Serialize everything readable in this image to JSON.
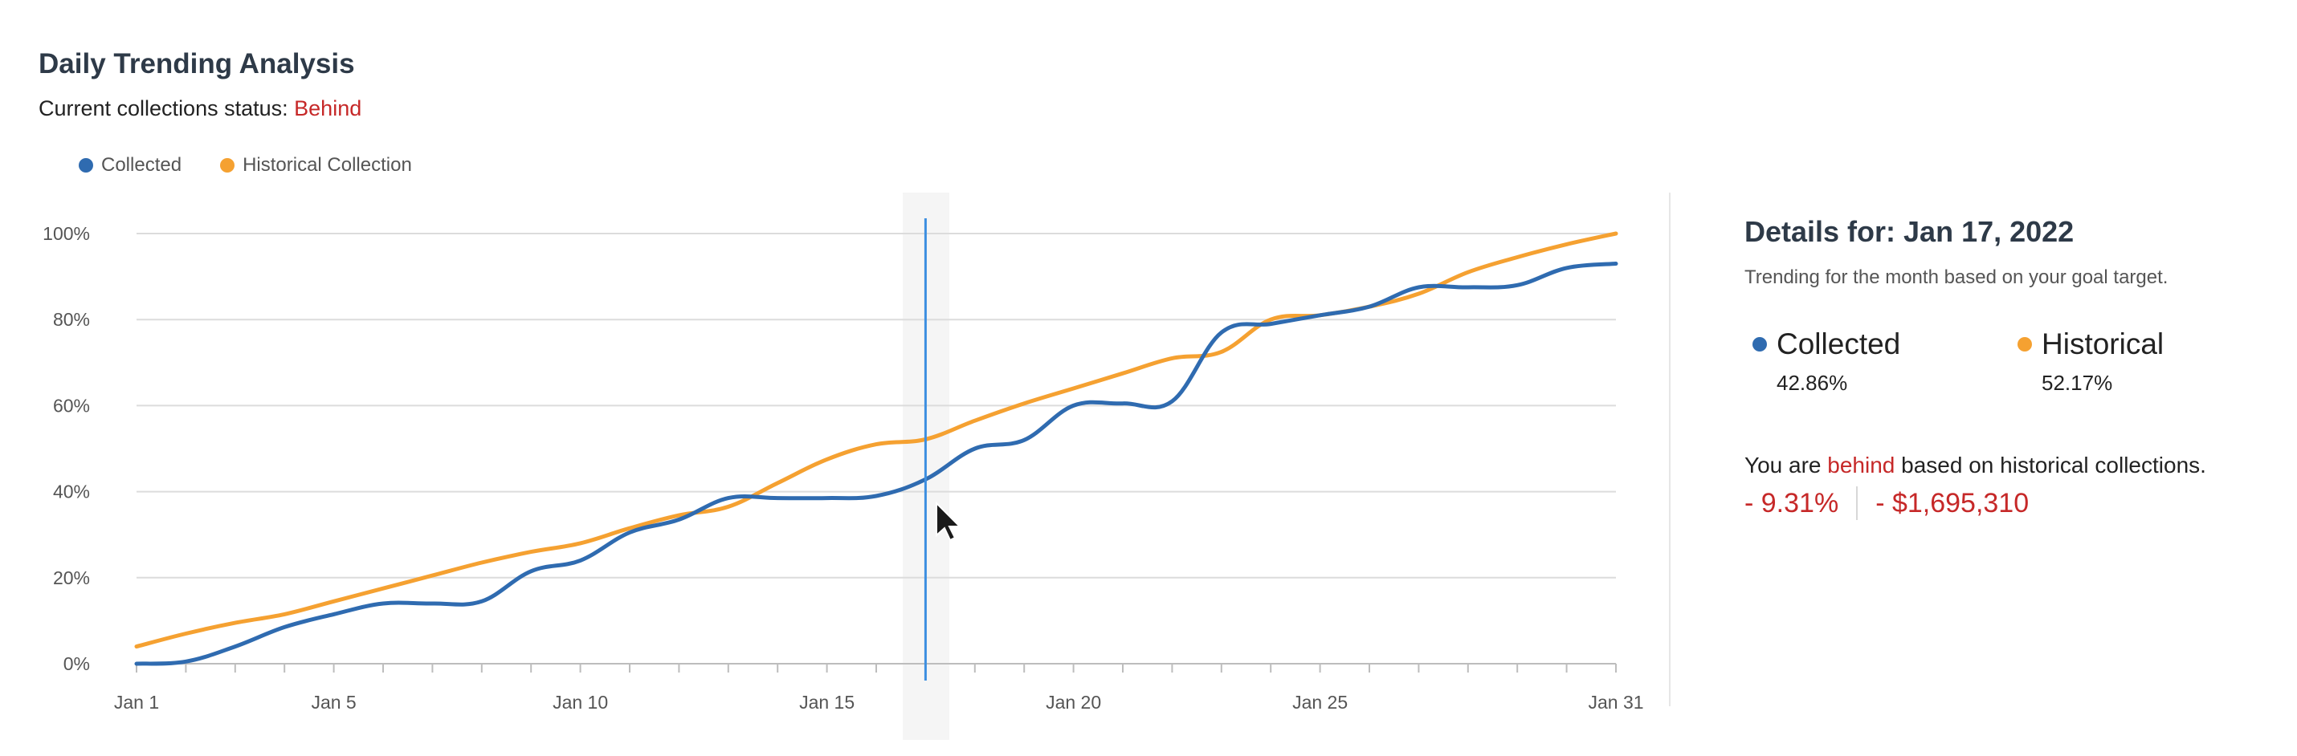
{
  "header": {
    "title": "Daily Trending Analysis",
    "status_label": "Current collections status:",
    "status_value": "Behind"
  },
  "colors": {
    "collected": "#2f6bb0",
    "historical": "#f5a131",
    "behind": "#c62828",
    "hover_line": "#3d8fe0"
  },
  "chart_data": {
    "type": "line",
    "x": [
      1,
      2,
      3,
      4,
      5,
      6,
      7,
      8,
      9,
      10,
      11,
      12,
      13,
      14,
      15,
      16,
      17,
      18,
      19,
      20,
      21,
      22,
      23,
      24,
      25,
      26,
      27,
      28,
      29,
      30,
      31
    ],
    "x_tick_labels": [
      "Jan 1",
      "Jan 5",
      "Jan 10",
      "Jan 15",
      "Jan 20",
      "Jan 25",
      "Jan 31"
    ],
    "x_tick_values": [
      1,
      5,
      10,
      15,
      20,
      25,
      31
    ],
    "y_tick_labels": [
      "0%",
      "20%",
      "40%",
      "60%",
      "80%",
      "100%"
    ],
    "ylim": [
      0,
      100
    ],
    "grid": true,
    "legend": "top-left",
    "series": [
      {
        "name": "Collected",
        "color": "#2f6bb0",
        "values": [
          0,
          0.5,
          4,
          8.5,
          11.5,
          14,
          14,
          14.5,
          21.5,
          24,
          30.5,
          33.5,
          38.5,
          38.5,
          38.5,
          39,
          42.86,
          50,
          52,
          60,
          60.5,
          61,
          77,
          79,
          81,
          83,
          87.5,
          87.5,
          88,
          92,
          93
        ]
      },
      {
        "name": "Historical Collection",
        "color": "#f5a131",
        "values": [
          4,
          7,
          9.5,
          11.5,
          14.5,
          17.5,
          20.5,
          23.5,
          26,
          28,
          31.5,
          34.5,
          36.5,
          42,
          47.5,
          51,
          52.17,
          56.5,
          60.5,
          64,
          67.5,
          71,
          72.5,
          80,
          81,
          83,
          86,
          91,
          94.5,
          97.5,
          100
        ]
      }
    ],
    "hover_x": 17
  },
  "legend": {
    "collected_label": "Collected",
    "historical_label": "Historical Collection"
  },
  "details": {
    "title": "Details for: Jan 17, 2022",
    "subtitle": "Trending for the month based on your goal target.",
    "collected_label": "Collected",
    "collected_value": "42.86%",
    "historical_label": "Historical",
    "historical_value": "52.17%",
    "behind_prefix": "You are",
    "behind_word": "behind",
    "behind_suffix": "based on historical collections.",
    "diff_percent": "- 9.31%",
    "diff_amount": "- $1,695,310"
  }
}
